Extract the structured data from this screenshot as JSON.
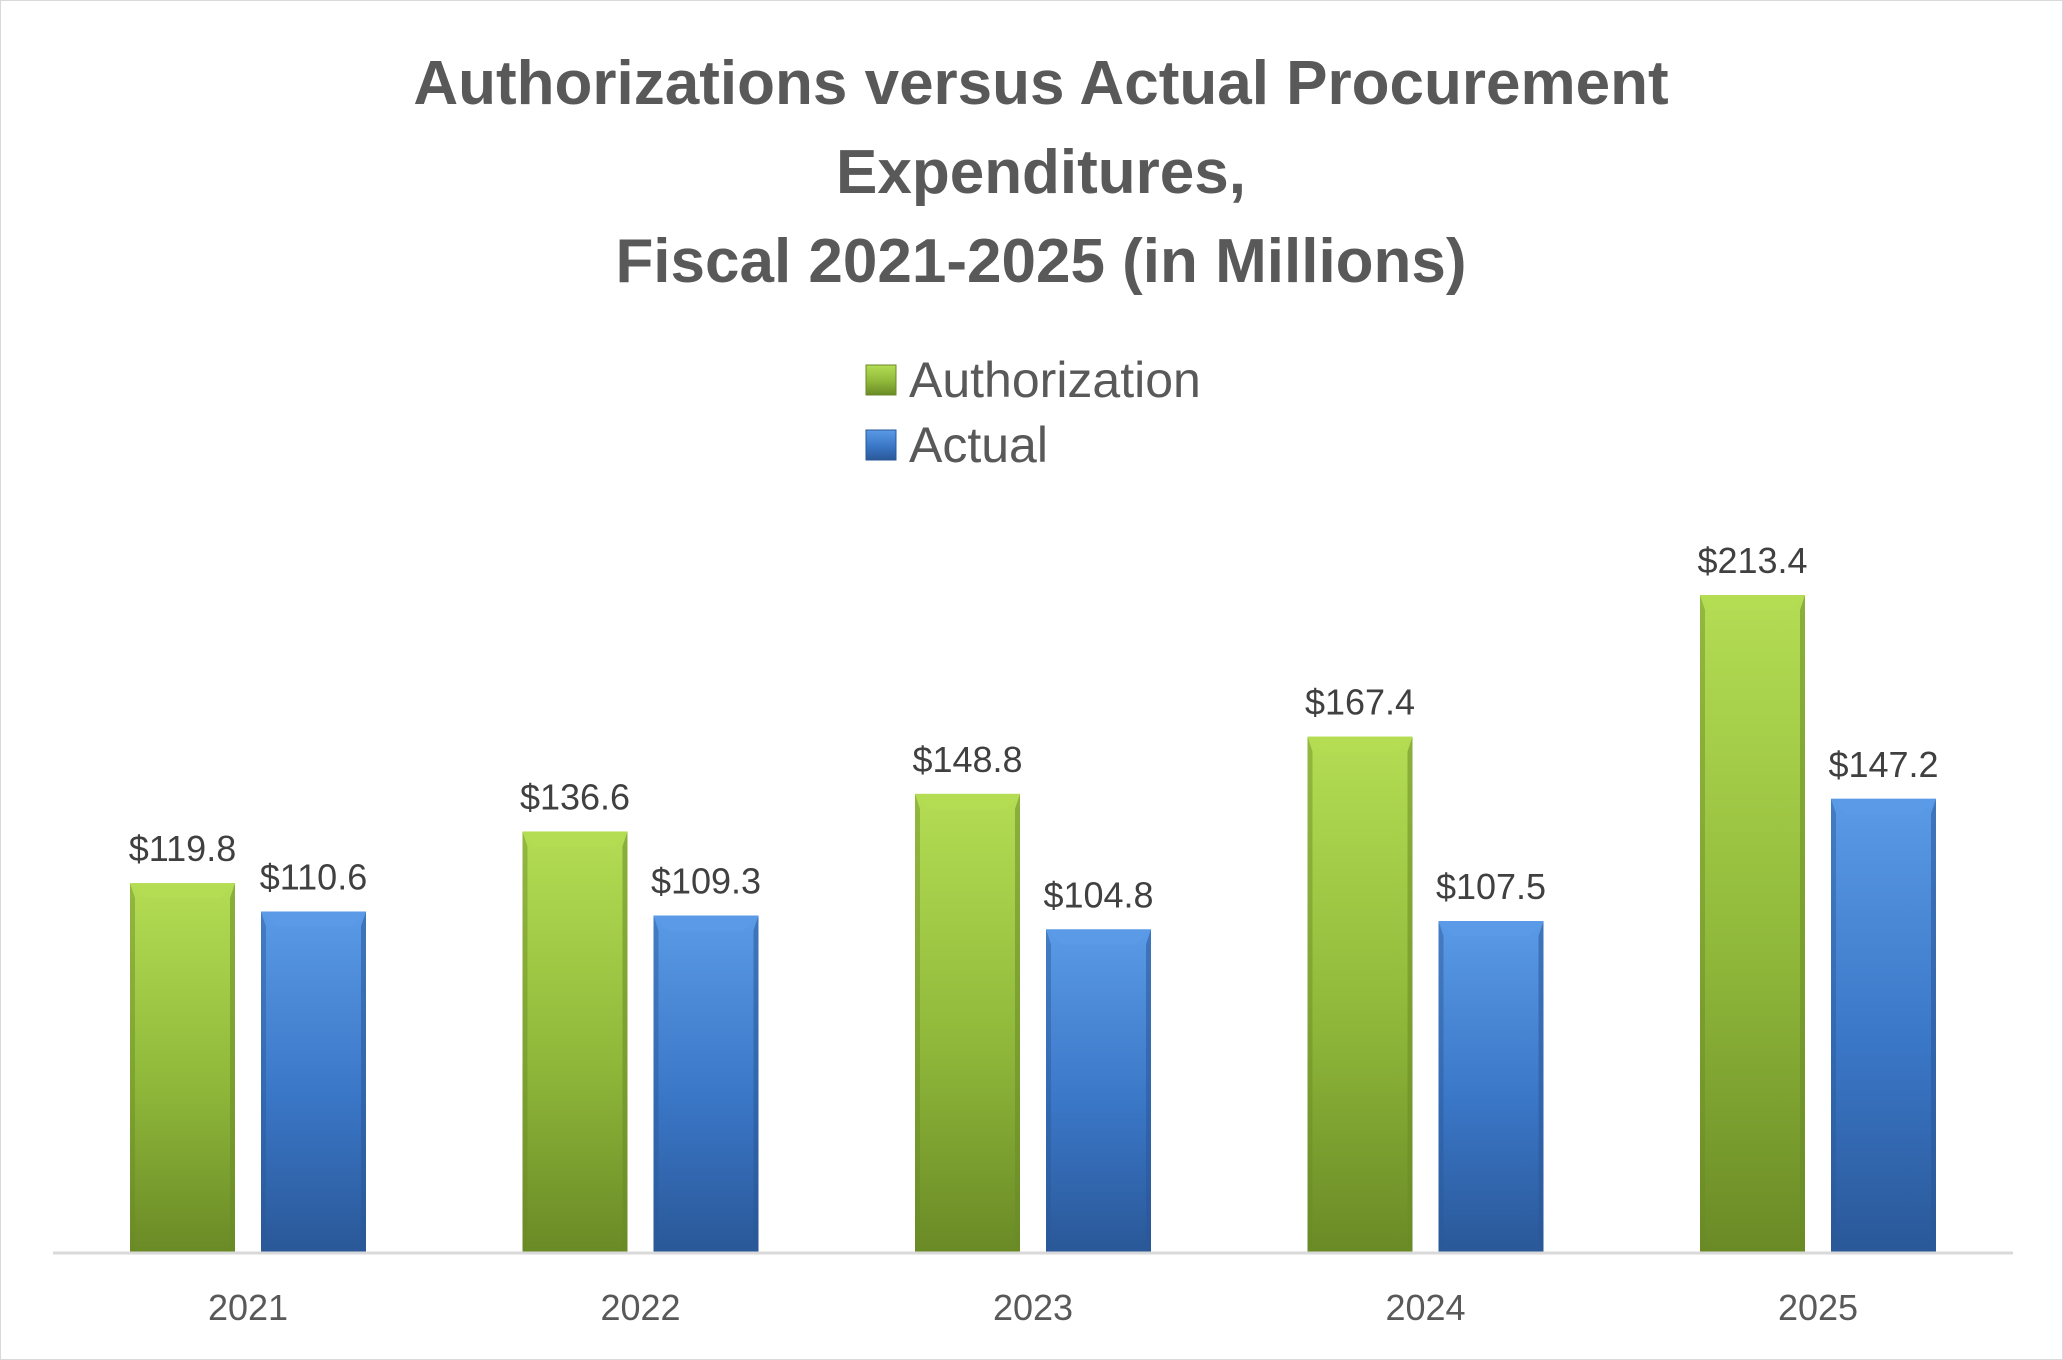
{
  "chart_data": {
    "type": "bar",
    "title_lines": [
      "Authorizations versus Actual Procurement",
      "Expenditures,",
      "Fiscal 2021-2025 (in Millions)"
    ],
    "xlabel": "",
    "ylabel": "",
    "categories": [
      "2021",
      "2022",
      "2023",
      "2024",
      "2025"
    ],
    "series": [
      {
        "name": "Authorization",
        "values": [
          119.8,
          136.6,
          148.8,
          167.4,
          213.4
        ],
        "labels": [
          "$119.8",
          "$136.6",
          "$148.8",
          "$167.4",
          "$213.4"
        ]
      },
      {
        "name": "Actual",
        "values": [
          110.6,
          109.3,
          104.8,
          107.5,
          147.2
        ],
        "labels": [
          "$110.6",
          "$109.3",
          "$104.8",
          "$107.5",
          "$147.2"
        ]
      }
    ],
    "ylim": [
      0,
      213.4
    ],
    "grid": false,
    "legend_position": "top-center",
    "colors": {
      "Authorization": {
        "light": "#b4dd54",
        "mid": "#8fb83a",
        "dark": "#6a8a26"
      },
      "Actual": {
        "light": "#5a9ae6",
        "mid": "#3a76c6",
        "dark": "#2a5898"
      },
      "axis": "#d9d9d9"
    }
  }
}
